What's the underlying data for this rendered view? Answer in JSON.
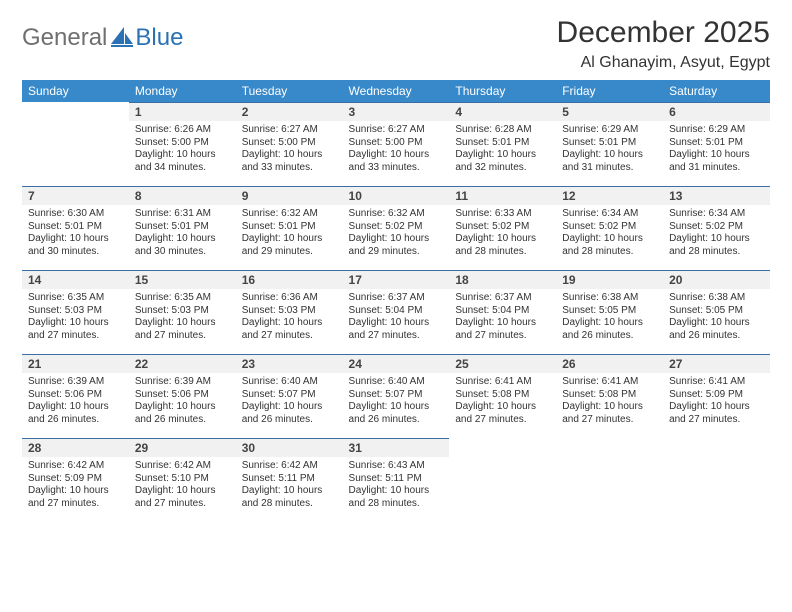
{
  "brand": {
    "part1": "General",
    "part2": "Blue",
    "logo_color": "#2a72b5",
    "text_gray": "#6f6f6f"
  },
  "title": "December 2025",
  "location": "Al Ghanayim, Asyut, Egypt",
  "header_bg": "#3789ca",
  "header_fg": "#ffffff",
  "gray_row": "#f1f1f1",
  "rule_color": "#3a6fa5",
  "weekdays": [
    "Sunday",
    "Monday",
    "Tuesday",
    "Wednesday",
    "Thursday",
    "Friday",
    "Saturday"
  ],
  "weeks": [
    [
      null,
      {
        "n": "1",
        "sr": "Sunrise: 6:26 AM",
        "ss": "Sunset: 5:00 PM",
        "dl": "Daylight: 10 hours and 34 minutes."
      },
      {
        "n": "2",
        "sr": "Sunrise: 6:27 AM",
        "ss": "Sunset: 5:00 PM",
        "dl": "Daylight: 10 hours and 33 minutes."
      },
      {
        "n": "3",
        "sr": "Sunrise: 6:27 AM",
        "ss": "Sunset: 5:00 PM",
        "dl": "Daylight: 10 hours and 33 minutes."
      },
      {
        "n": "4",
        "sr": "Sunrise: 6:28 AM",
        "ss": "Sunset: 5:01 PM",
        "dl": "Daylight: 10 hours and 32 minutes."
      },
      {
        "n": "5",
        "sr": "Sunrise: 6:29 AM",
        "ss": "Sunset: 5:01 PM",
        "dl": "Daylight: 10 hours and 31 minutes."
      },
      {
        "n": "6",
        "sr": "Sunrise: 6:29 AM",
        "ss": "Sunset: 5:01 PM",
        "dl": "Daylight: 10 hours and 31 minutes."
      }
    ],
    [
      {
        "n": "7",
        "sr": "Sunrise: 6:30 AM",
        "ss": "Sunset: 5:01 PM",
        "dl": "Daylight: 10 hours and 30 minutes."
      },
      {
        "n": "8",
        "sr": "Sunrise: 6:31 AM",
        "ss": "Sunset: 5:01 PM",
        "dl": "Daylight: 10 hours and 30 minutes."
      },
      {
        "n": "9",
        "sr": "Sunrise: 6:32 AM",
        "ss": "Sunset: 5:01 PM",
        "dl": "Daylight: 10 hours and 29 minutes."
      },
      {
        "n": "10",
        "sr": "Sunrise: 6:32 AM",
        "ss": "Sunset: 5:02 PM",
        "dl": "Daylight: 10 hours and 29 minutes."
      },
      {
        "n": "11",
        "sr": "Sunrise: 6:33 AM",
        "ss": "Sunset: 5:02 PM",
        "dl": "Daylight: 10 hours and 28 minutes."
      },
      {
        "n": "12",
        "sr": "Sunrise: 6:34 AM",
        "ss": "Sunset: 5:02 PM",
        "dl": "Daylight: 10 hours and 28 minutes."
      },
      {
        "n": "13",
        "sr": "Sunrise: 6:34 AM",
        "ss": "Sunset: 5:02 PM",
        "dl": "Daylight: 10 hours and 28 minutes."
      }
    ],
    [
      {
        "n": "14",
        "sr": "Sunrise: 6:35 AM",
        "ss": "Sunset: 5:03 PM",
        "dl": "Daylight: 10 hours and 27 minutes."
      },
      {
        "n": "15",
        "sr": "Sunrise: 6:35 AM",
        "ss": "Sunset: 5:03 PM",
        "dl": "Daylight: 10 hours and 27 minutes."
      },
      {
        "n": "16",
        "sr": "Sunrise: 6:36 AM",
        "ss": "Sunset: 5:03 PM",
        "dl": "Daylight: 10 hours and 27 minutes."
      },
      {
        "n": "17",
        "sr": "Sunrise: 6:37 AM",
        "ss": "Sunset: 5:04 PM",
        "dl": "Daylight: 10 hours and 27 minutes."
      },
      {
        "n": "18",
        "sr": "Sunrise: 6:37 AM",
        "ss": "Sunset: 5:04 PM",
        "dl": "Daylight: 10 hours and 27 minutes."
      },
      {
        "n": "19",
        "sr": "Sunrise: 6:38 AM",
        "ss": "Sunset: 5:05 PM",
        "dl": "Daylight: 10 hours and 26 minutes."
      },
      {
        "n": "20",
        "sr": "Sunrise: 6:38 AM",
        "ss": "Sunset: 5:05 PM",
        "dl": "Daylight: 10 hours and 26 minutes."
      }
    ],
    [
      {
        "n": "21",
        "sr": "Sunrise: 6:39 AM",
        "ss": "Sunset: 5:06 PM",
        "dl": "Daylight: 10 hours and 26 minutes."
      },
      {
        "n": "22",
        "sr": "Sunrise: 6:39 AM",
        "ss": "Sunset: 5:06 PM",
        "dl": "Daylight: 10 hours and 26 minutes."
      },
      {
        "n": "23",
        "sr": "Sunrise: 6:40 AM",
        "ss": "Sunset: 5:07 PM",
        "dl": "Daylight: 10 hours and 26 minutes."
      },
      {
        "n": "24",
        "sr": "Sunrise: 6:40 AM",
        "ss": "Sunset: 5:07 PM",
        "dl": "Daylight: 10 hours and 26 minutes."
      },
      {
        "n": "25",
        "sr": "Sunrise: 6:41 AM",
        "ss": "Sunset: 5:08 PM",
        "dl": "Daylight: 10 hours and 27 minutes."
      },
      {
        "n": "26",
        "sr": "Sunrise: 6:41 AM",
        "ss": "Sunset: 5:08 PM",
        "dl": "Daylight: 10 hours and 27 minutes."
      },
      {
        "n": "27",
        "sr": "Sunrise: 6:41 AM",
        "ss": "Sunset: 5:09 PM",
        "dl": "Daylight: 10 hours and 27 minutes."
      }
    ],
    [
      {
        "n": "28",
        "sr": "Sunrise: 6:42 AM",
        "ss": "Sunset: 5:09 PM",
        "dl": "Daylight: 10 hours and 27 minutes."
      },
      {
        "n": "29",
        "sr": "Sunrise: 6:42 AM",
        "ss": "Sunset: 5:10 PM",
        "dl": "Daylight: 10 hours and 27 minutes."
      },
      {
        "n": "30",
        "sr": "Sunrise: 6:42 AM",
        "ss": "Sunset: 5:11 PM",
        "dl": "Daylight: 10 hours and 28 minutes."
      },
      {
        "n": "31",
        "sr": "Sunrise: 6:43 AM",
        "ss": "Sunset: 5:11 PM",
        "dl": "Daylight: 10 hours and 28 minutes."
      },
      null,
      null,
      null
    ]
  ]
}
